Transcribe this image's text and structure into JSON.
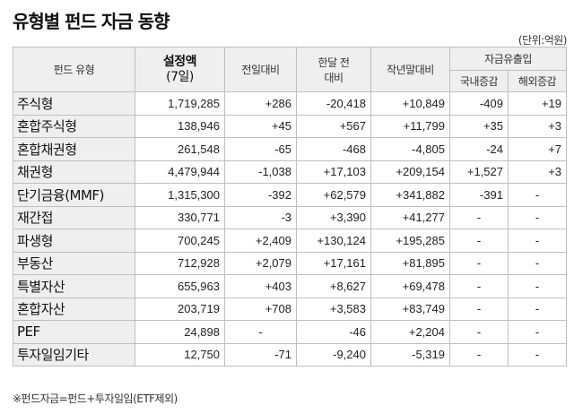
{
  "title": "유형별 펀드 자금 동향",
  "unit": "(단위:억원)",
  "headers": {
    "type": "펀드 유형",
    "setup_line1": "설정액",
    "setup_line2": "(7일)",
    "prev_day": "전일대비",
    "month_line1": "한달 전",
    "month_line2": "대비",
    "year_end": "작년말대비",
    "flow_group": "자금유출입",
    "domestic": "국내증감",
    "overseas": "해외증감"
  },
  "rows": [
    {
      "name": "주식형",
      "setup": "1,719,285",
      "prev_day": "+286",
      "month": "-20,418",
      "year_end": "+10,849",
      "domestic": "-409",
      "overseas": "+19"
    },
    {
      "name": "혼합주식형",
      "setup": "138,946",
      "prev_day": "+45",
      "month": "+567",
      "year_end": "+11,799",
      "domestic": "+35",
      "overseas": "+3"
    },
    {
      "name": "혼합채권형",
      "setup": "261,548",
      "prev_day": "-65",
      "month": "-468",
      "year_end": "-4,805",
      "domestic": "-24",
      "overseas": "+7"
    },
    {
      "name": "채권형",
      "setup": "4,479,944",
      "prev_day": "-1,038",
      "month": "+17,103",
      "year_end": "+209,154",
      "domestic": "+1,527",
      "overseas": "+3"
    },
    {
      "name": "단기금융(MMF)",
      "setup": "1,315,300",
      "prev_day": "-392",
      "month": "+62,579",
      "year_end": "+341,882",
      "domestic": "-391",
      "overseas": "-"
    },
    {
      "name": "재간접",
      "setup": "330,771",
      "prev_day": "-3",
      "month": "+3,390",
      "year_end": "+41,277",
      "domestic": "-",
      "overseas": "-"
    },
    {
      "name": "파생형",
      "setup": "700,245",
      "prev_day": "+2,409",
      "month": "+130,124",
      "year_end": "+195,285",
      "domestic": "-",
      "overseas": "-"
    },
    {
      "name": "부동산",
      "setup": "712,928",
      "prev_day": "+2,079",
      "month": "+17,161",
      "year_end": "+81,895",
      "domestic": "-",
      "overseas": "-"
    },
    {
      "name": "특별자산",
      "setup": "655,963",
      "prev_day": "+403",
      "month": "+8,627",
      "year_end": "+69,478",
      "domestic": "-",
      "overseas": "-"
    },
    {
      "name": "혼합자산",
      "setup": "203,719",
      "prev_day": "+708",
      "month": "+3,583",
      "year_end": "+83,749",
      "domestic": "-",
      "overseas": "-"
    },
    {
      "name": "PEF",
      "setup": "24,898",
      "prev_day": "-",
      "month": "-46",
      "year_end": "+2,204",
      "domestic": "-",
      "overseas": "-"
    },
    {
      "name": "투자일임기타",
      "setup": "12,750",
      "prev_day": "-71",
      "month": "-9,240",
      "year_end": "-5,319",
      "domestic": "-",
      "overseas": "-"
    }
  ],
  "note": "※펀드자금=펀드+투자일임(ETF제외)"
}
